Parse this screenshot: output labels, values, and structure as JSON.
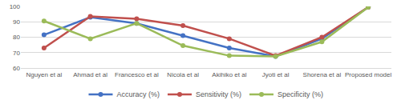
{
  "chart_data": {
    "type": "line",
    "categories": [
      "Nguyen et al",
      "Ahmad et al",
      "Francesco et al",
      "Nicola et al",
      "Akihiko et al",
      "Jyoti et al",
      "Shorena et al",
      "Proposed model"
    ],
    "series": [
      {
        "name": "Accuracy (%)",
        "color": "#4472c4",
        "marker": "circle",
        "values": [
          81.5,
          93,
          89,
          81,
          73,
          67.5,
          79,
          99.5
        ]
      },
      {
        "name": "Sensitivity (%)",
        "color": "#c0504d",
        "marker": "circle",
        "values": [
          73,
          93.5,
          92,
          87.5,
          79,
          68,
          80,
          99.5
        ]
      },
      {
        "name": "Specificity (%)",
        "color": "#9bbb59",
        "marker": "circle",
        "values": [
          90.5,
          79,
          89,
          74.5,
          68,
          67.5,
          77,
          99.5
        ]
      }
    ],
    "ylim": [
      60,
      100
    ],
    "yticks": [
      60,
      70,
      80,
      90,
      100
    ],
    "grid": true,
    "legend": "bottom"
  }
}
